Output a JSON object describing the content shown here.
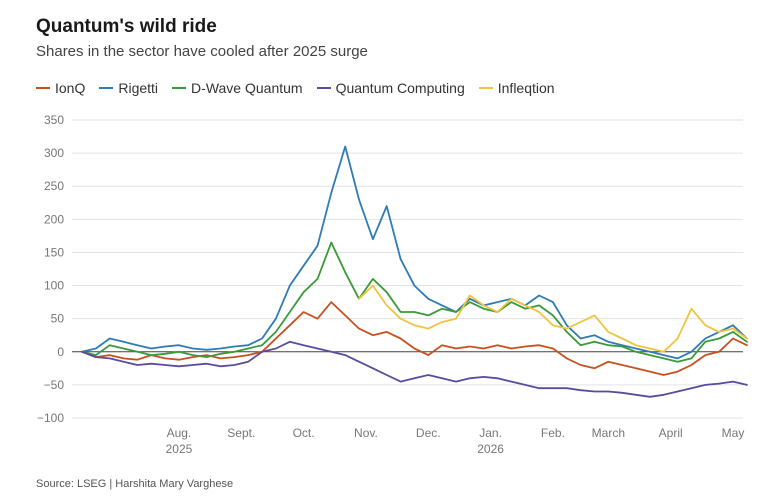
{
  "title": "Quantum's wild ride",
  "subtitle": "Shares in the sector have cooled after 2025 surge",
  "source": "Source: LSEG | Harshita Mary Varghese",
  "chart_data": {
    "type": "line",
    "xlabel": "",
    "ylabel": "",
    "ylim": [
      -100,
      350
    ],
    "yticks": [
      350,
      300,
      250,
      200,
      150,
      100,
      50,
      0,
      -50,
      -100
    ],
    "ytick_labels": [
      "350",
      "300",
      "250",
      "200",
      "150",
      "100",
      "50",
      "0",
      "−50",
      "−100"
    ],
    "xlim": [
      0,
      47
    ],
    "xticks": [
      {
        "x": 7.0,
        "label": "Aug.",
        "sub": "2025"
      },
      {
        "x": 11.5,
        "label": "Sept.",
        "sub": ""
      },
      {
        "x": 16.0,
        "label": "Oct.",
        "sub": ""
      },
      {
        "x": 20.5,
        "label": "Nov.",
        "sub": ""
      },
      {
        "x": 25.0,
        "label": "Dec.",
        "sub": ""
      },
      {
        "x": 29.5,
        "label": "Jan.",
        "sub": "2026"
      },
      {
        "x": 34.0,
        "label": "Feb.",
        "sub": ""
      },
      {
        "x": 38.0,
        "label": "March",
        "sub": ""
      },
      {
        "x": 42.5,
        "label": "April",
        "sub": ""
      },
      {
        "x": 47.0,
        "label": "May",
        "sub": ""
      }
    ],
    "grid": true,
    "legend_position": "top-left",
    "series": [
      {
        "name": "IonQ",
        "color": "#c8501e",
        "values": [
          0,
          -8,
          -5,
          -10,
          -12,
          -5,
          -10,
          -12,
          -8,
          -5,
          -10,
          -8,
          -5,
          0,
          20,
          40,
          60,
          50,
          75,
          55,
          35,
          25,
          30,
          20,
          5,
          -5,
          10,
          5,
          8,
          5,
          10,
          5,
          8,
          10,
          5,
          -10,
          -20,
          -25,
          -15,
          -20,
          -25,
          -30,
          -35,
          -30,
          -20,
          -5,
          0,
          20,
          10
        ]
      },
      {
        "name": "Rigetti",
        "color": "#2f7bb5",
        "values": [
          0,
          5,
          20,
          15,
          10,
          5,
          8,
          10,
          5,
          3,
          5,
          8,
          10,
          20,
          50,
          100,
          130,
          160,
          240,
          310,
          230,
          170,
          220,
          140,
          100,
          80,
          70,
          60,
          80,
          70,
          75,
          80,
          70,
          85,
          75,
          40,
          20,
          25,
          15,
          10,
          5,
          0,
          -5,
          -10,
          0,
          20,
          30,
          40,
          20
        ]
      },
      {
        "name": "D-Wave Quantum",
        "color": "#3a9a3a",
        "values": [
          0,
          -5,
          10,
          5,
          0,
          -5,
          -3,
          0,
          -5,
          -8,
          -3,
          0,
          5,
          10,
          30,
          60,
          90,
          110,
          165,
          120,
          80,
          110,
          90,
          60,
          60,
          55,
          65,
          60,
          75,
          65,
          60,
          75,
          65,
          70,
          55,
          30,
          10,
          15,
          10,
          8,
          0,
          -5,
          -10,
          -15,
          -10,
          15,
          20,
          30,
          15
        ]
      },
      {
        "name": "Quantum Computing",
        "color": "#5b4a9e",
        "values": [
          0,
          -8,
          -10,
          -15,
          -20,
          -18,
          -20,
          -22,
          -20,
          -18,
          -22,
          -20,
          -15,
          0,
          5,
          15,
          10,
          5,
          0,
          -5,
          -15,
          -25,
          -35,
          -45,
          -40,
          -35,
          -40,
          -45,
          -40,
          -38,
          -40,
          -45,
          -50,
          -55,
          -55,
          -55,
          -58,
          -60,
          -60,
          -62,
          -65,
          -68,
          -65,
          -60,
          -55,
          -50,
          -48,
          -45,
          -50
        ]
      },
      {
        "name": "Infleqtion",
        "color": "#f0c43c",
        "values": [
          null,
          null,
          null,
          null,
          null,
          null,
          null,
          null,
          null,
          null,
          null,
          null,
          null,
          null,
          null,
          null,
          null,
          null,
          null,
          null,
          80,
          100,
          70,
          50,
          40,
          35,
          45,
          50,
          85,
          70,
          60,
          80,
          70,
          60,
          40,
          35,
          45,
          55,
          30,
          20,
          10,
          5,
          0,
          20,
          65,
          40,
          30,
          35,
          20
        ]
      }
    ]
  }
}
